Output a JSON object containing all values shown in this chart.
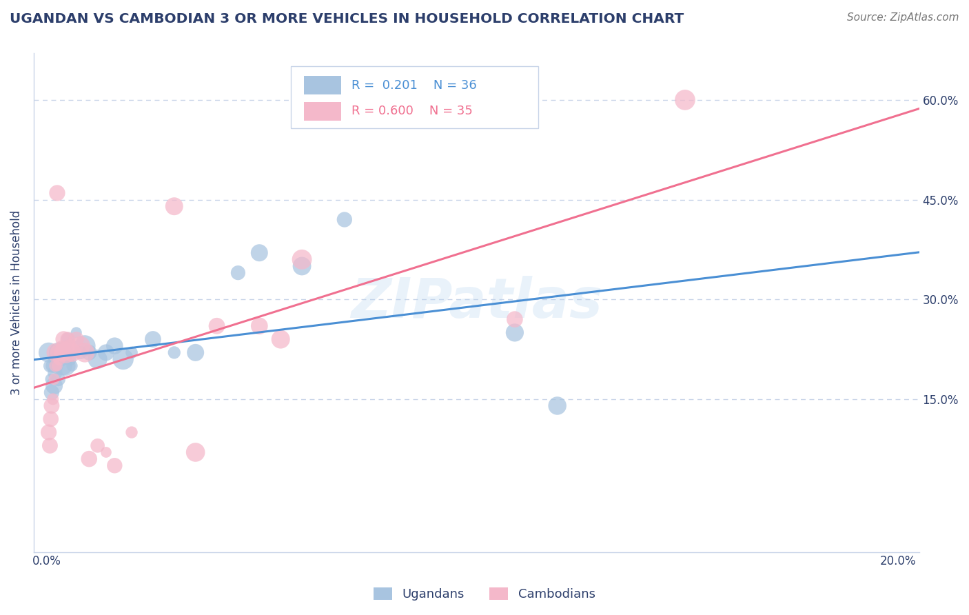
{
  "title": "UGANDAN VS CAMBODIAN 3 OR MORE VEHICLES IN HOUSEHOLD CORRELATION CHART",
  "source_text": "Source: ZipAtlas.com",
  "ylabel": "3 or more Vehicles in Household",
  "ugandan_color": "#a8c4e0",
  "cambodian_color": "#f4b8ca",
  "ugandan_line_color": "#4a8fd4",
  "cambodian_line_color": "#f07090",
  "legend_R_ugandan": "R =  0.201",
  "legend_N_ugandan": "N = 36",
  "legend_R_cambodian": "R = 0.600",
  "legend_N_cambodian": "N = 35",
  "background_color": "#ffffff",
  "grid_color": "#c8d4e8",
  "title_color": "#2c3e6b",
  "source_color": "#777777",
  "ugandan_points": [
    [
      0.05,
      22.0
    ],
    [
      0.08,
      20.0
    ],
    [
      0.1,
      18.0
    ],
    [
      0.12,
      16.0
    ],
    [
      0.15,
      20.0
    ],
    [
      0.18,
      17.0
    ],
    [
      0.2,
      19.0
    ],
    [
      0.22,
      21.0
    ],
    [
      0.25,
      20.0
    ],
    [
      0.28,
      18.0
    ],
    [
      0.3,
      22.0
    ],
    [
      0.35,
      21.0
    ],
    [
      0.38,
      20.0
    ],
    [
      0.4,
      22.0
    ],
    [
      0.45,
      20.0
    ],
    [
      0.5,
      24.0
    ],
    [
      0.55,
      21.0
    ],
    [
      0.6,
      20.0
    ],
    [
      0.7,
      25.0
    ],
    [
      0.8,
      22.0
    ],
    [
      0.9,
      23.0
    ],
    [
      1.0,
      22.0
    ],
    [
      1.2,
      21.0
    ],
    [
      1.4,
      22.0
    ],
    [
      1.6,
      23.0
    ],
    [
      1.8,
      21.0
    ],
    [
      2.0,
      22.0
    ],
    [
      2.5,
      24.0
    ],
    [
      3.0,
      22.0
    ],
    [
      3.5,
      22.0
    ],
    [
      4.5,
      34.0
    ],
    [
      5.0,
      37.0
    ],
    [
      6.0,
      35.0
    ],
    [
      7.0,
      42.0
    ],
    [
      11.0,
      25.0
    ],
    [
      12.0,
      14.0
    ]
  ],
  "cambodian_points": [
    [
      0.05,
      10.0
    ],
    [
      0.08,
      8.0
    ],
    [
      0.1,
      12.0
    ],
    [
      0.12,
      14.0
    ],
    [
      0.15,
      15.0
    ],
    [
      0.18,
      18.0
    ],
    [
      0.2,
      20.0
    ],
    [
      0.22,
      22.0
    ],
    [
      0.25,
      20.0
    ],
    [
      0.28,
      22.0
    ],
    [
      0.3,
      21.0
    ],
    [
      0.35,
      23.0
    ],
    [
      0.38,
      22.0
    ],
    [
      0.4,
      24.0
    ],
    [
      0.45,
      22.0
    ],
    [
      0.5,
      24.0
    ],
    [
      0.55,
      23.0
    ],
    [
      0.6,
      22.0
    ],
    [
      0.7,
      24.0
    ],
    [
      0.8,
      23.0
    ],
    [
      0.9,
      22.0
    ],
    [
      1.0,
      6.0
    ],
    [
      1.2,
      8.0
    ],
    [
      1.4,
      7.0
    ],
    [
      1.6,
      5.0
    ],
    [
      2.0,
      10.0
    ],
    [
      3.5,
      7.0
    ],
    [
      4.0,
      26.0
    ],
    [
      5.0,
      26.0
    ],
    [
      5.5,
      24.0
    ],
    [
      0.25,
      46.0
    ],
    [
      3.0,
      44.0
    ],
    [
      6.0,
      36.0
    ],
    [
      11.0,
      27.0
    ],
    [
      15.0,
      60.0
    ]
  ]
}
